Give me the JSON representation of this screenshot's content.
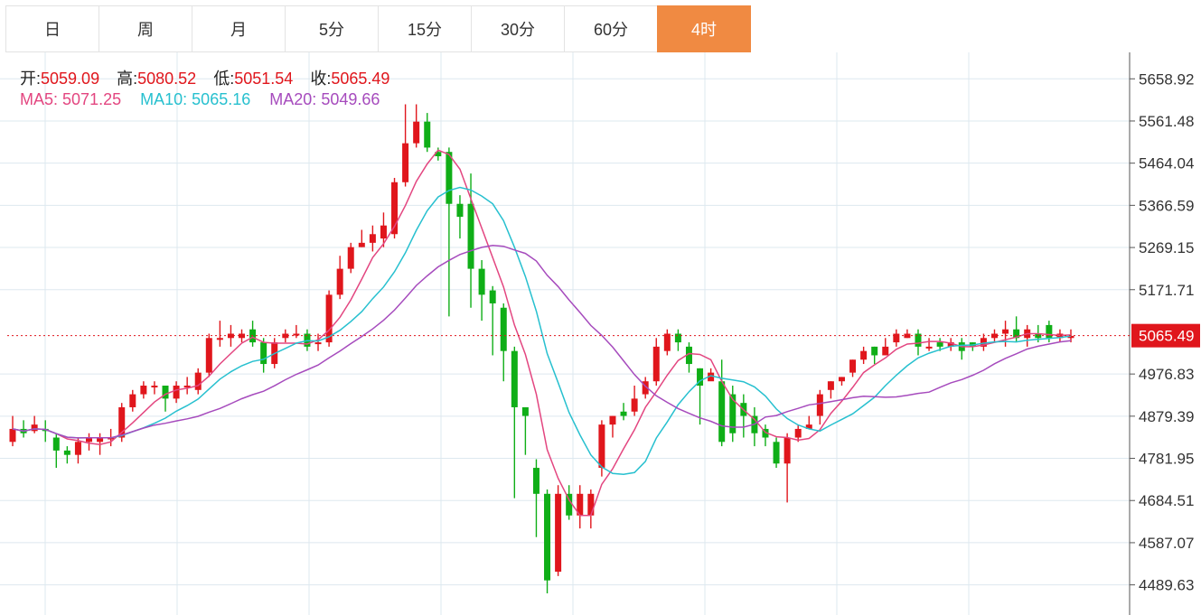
{
  "tabs": [
    {
      "label": "日",
      "active": false
    },
    {
      "label": "周",
      "active": false
    },
    {
      "label": "月",
      "active": false
    },
    {
      "label": "5分",
      "active": false
    },
    {
      "label": "15分",
      "active": false
    },
    {
      "label": "30分",
      "active": false
    },
    {
      "label": "60分",
      "active": false
    },
    {
      "label": "4时",
      "active": true
    }
  ],
  "ohlc": {
    "open_label": "开:",
    "open": "5059.09",
    "high_label": "高:",
    "high": "5080.52",
    "low_label": "低:",
    "low": "5051.54",
    "close_label": "收:",
    "close": "5065.49"
  },
  "ma": {
    "ma5_label": "MA5:",
    "ma5": "5071.25",
    "ma10_label": "MA10:",
    "ma10": "5065.16",
    "ma20_label": "MA20:",
    "ma20": "5049.66"
  },
  "colors": {
    "up": "#e0161c",
    "down": "#0fae17",
    "ma5": "#e34680",
    "ma10": "#27c0cf",
    "ma20": "#a64bbd",
    "accent": "#f08a42",
    "grid": "#dde8ef"
  },
  "chart_data": {
    "type": "candlestick",
    "y_ticks": [
      "5658.92",
      "5561.48",
      "5464.04",
      "5366.59",
      "5269.15",
      "5171.71",
      "4976.83",
      "4879.39",
      "4781.95",
      "4684.51",
      "4587.07",
      "4489.63"
    ],
    "last_price": 5065.49,
    "last_price_label": "5065.49",
    "ylim": [
      4420,
      5720
    ],
    "candles": [
      [
        4820,
        4850,
        4880,
        4810
      ],
      [
        4850,
        4840,
        4870,
        4830
      ],
      [
        4845,
        4860,
        4880,
        4840
      ],
      [
        4850,
        4845,
        4870,
        4820
      ],
      [
        4830,
        4800,
        4840,
        4760
      ],
      [
        4800,
        4790,
        4810,
        4770
      ],
      [
        4790,
        4820,
        4830,
        4770
      ],
      [
        4820,
        4830,
        4840,
        4800
      ],
      [
        4820,
        4830,
        4840,
        4790
      ],
      [
        4830,
        4830,
        4850,
        4810
      ],
      [
        4830,
        4900,
        4910,
        4820
      ],
      [
        4900,
        4930,
        4940,
        4890
      ],
      [
        4930,
        4950,
        4960,
        4920
      ],
      [
        4950,
        4950,
        4960,
        4930
      ],
      [
        4950,
        4920,
        4950,
        4890
      ],
      [
        4920,
        4950,
        4960,
        4910
      ],
      [
        4950,
        4950,
        4970,
        4930
      ],
      [
        4940,
        4980,
        4990,
        4930
      ],
      [
        4980,
        5060,
        5070,
        4970
      ],
      [
        5060,
        5060,
        5100,
        5040
      ],
      [
        5060,
        5070,
        5090,
        5040
      ],
      [
        5060,
        5070,
        5080,
        5050
      ],
      [
        5080,
        5050,
        5100,
        5040
      ],
      [
        5050,
        5000,
        5060,
        4980
      ],
      [
        5000,
        5050,
        5060,
        4990
      ],
      [
        5060,
        5070,
        5080,
        5050
      ],
      [
        5070,
        5070,
        5090,
        5060
      ],
      [
        5070,
        5040,
        5080,
        5030
      ],
      [
        5050,
        5050,
        5070,
        5030
      ],
      [
        5050,
        5160,
        5170,
        5040
      ],
      [
        5160,
        5220,
        5250,
        5150
      ],
      [
        5220,
        5270,
        5280,
        5210
      ],
      [
        5270,
        5280,
        5310,
        5270
      ],
      [
        5280,
        5300,
        5320,
        5260
      ],
      [
        5290,
        5320,
        5350,
        5270
      ],
      [
        5300,
        5420,
        5430,
        5290
      ],
      [
        5420,
        5510,
        5600,
        5410
      ],
      [
        5510,
        5560,
        5600,
        5500
      ],
      [
        5560,
        5500,
        5580,
        5490
      ],
      [
        5490,
        5480,
        5500,
        5470
      ],
      [
        5490,
        5370,
        5500,
        5110
      ],
      [
        5370,
        5340,
        5390,
        5290
      ],
      [
        5370,
        5220,
        5440,
        5130
      ],
      [
        5220,
        5160,
        5240,
        5100
      ],
      [
        5170,
        5140,
        5180,
        5020
      ],
      [
        5130,
        5030,
        5140,
        4960
      ],
      [
        5030,
        4900,
        5040,
        4690
      ],
      [
        4900,
        4880,
        4900,
        4790
      ],
      [
        4760,
        4700,
        4780,
        4600
      ],
      [
        4700,
        4500,
        4710,
        4470
      ],
      [
        4520,
        4700,
        4720,
        4510
      ],
      [
        4700,
        4650,
        4720,
        4640
      ],
      [
        4650,
        4700,
        4720,
        4620
      ],
      [
        4650,
        4700,
        4710,
        4620
      ],
      [
        4760,
        4860,
        4870,
        4740
      ],
      [
        4860,
        4880,
        4880,
        4830
      ],
      [
        4890,
        4880,
        4910,
        4870
      ],
      [
        4890,
        4920,
        4950,
        4880
      ],
      [
        4930,
        4960,
        4970,
        4920
      ],
      [
        4960,
        5040,
        5060,
        4950
      ],
      [
        5030,
        5070,
        5080,
        5020
      ],
      [
        5070,
        5050,
        5080,
        5030
      ],
      [
        5040,
        5000,
        5050,
        4980
      ],
      [
        4990,
        4950,
        4990,
        4860
      ],
      [
        4960,
        4980,
        4990,
        4970
      ],
      [
        4960,
        4820,
        5010,
        4810
      ],
      [
        4930,
        4840,
        4950,
        4820
      ],
      [
        4910,
        4880,
        4930,
        4830
      ],
      [
        4880,
        4840,
        4900,
        4810
      ],
      [
        4850,
        4830,
        4860,
        4810
      ],
      [
        4820,
        4770,
        4830,
        4760
      ],
      [
        4770,
        4830,
        4840,
        4680
      ],
      [
        4830,
        4850,
        4860,
        4820
      ],
      [
        4850,
        4860,
        4880,
        4850
      ],
      [
        4880,
        4930,
        4940,
        4860
      ],
      [
        4940,
        4960,
        4960,
        4920
      ],
      [
        4960,
        4970,
        4970,
        4950
      ],
      [
        4980,
        5010,
        5010,
        4970
      ],
      [
        5010,
        5030,
        5040,
        5000
      ],
      [
        5040,
        5020,
        5040,
        5000
      ],
      [
        5020,
        5040,
        5060,
        5020
      ],
      [
        5050,
        5070,
        5080,
        5040
      ],
      [
        5060,
        5070,
        5080,
        5060
      ],
      [
        5070,
        5040,
        5080,
        5020
      ],
      [
        5040,
        5040,
        5060,
        5030
      ],
      [
        5050,
        5040,
        5060,
        5030
      ],
      [
        5040,
        5050,
        5060,
        5030
      ],
      [
        5050,
        5030,
        5060,
        5010
      ],
      [
        5050,
        5040,
        5050,
        5030
      ],
      [
        5040,
        5060,
        5070,
        5030
      ],
      [
        5060,
        5070,
        5080,
        5050
      ],
      [
        5070,
        5080,
        5100,
        5040
      ],
      [
        5080,
        5060,
        5110,
        5050
      ],
      [
        5060,
        5080,
        5090,
        5040
      ],
      [
        5070,
        5060,
        5090,
        5050
      ],
      [
        5090,
        5060,
        5100,
        5050
      ],
      [
        5060,
        5070,
        5080,
        5050
      ],
      [
        5060,
        5065,
        5080,
        5050
      ]
    ]
  }
}
